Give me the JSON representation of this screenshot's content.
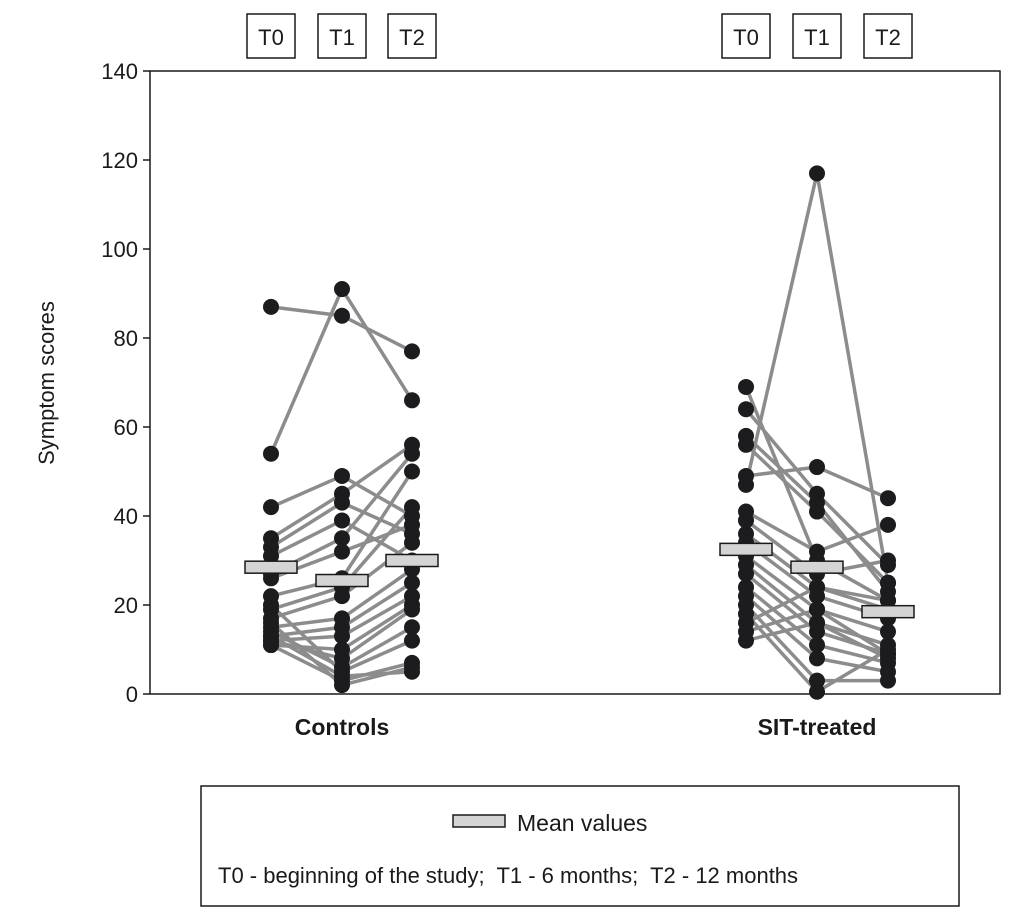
{
  "chart_data": {
    "type": "scatter",
    "subtype": "paired-dot-line",
    "ylabel": "Symptom scores",
    "ylim": [
      0,
      140
    ],
    "yticks": [
      0,
      20,
      40,
      60,
      80,
      100,
      120,
      140
    ],
    "timepoints": [
      "T0",
      "T1",
      "T2"
    ],
    "groups": [
      {
        "name": "Controls",
        "means": [
          28.5,
          25.5,
          30
        ],
        "subjects": [
          [
            87,
            85,
            77
          ],
          [
            54,
            91,
            66
          ],
          [
            42,
            49,
            40
          ],
          [
            35,
            45,
            56
          ],
          [
            33,
            43,
            36
          ],
          [
            31,
            39,
            30
          ],
          [
            27,
            35,
            54
          ],
          [
            26,
            32,
            38
          ],
          [
            22,
            26,
            50
          ],
          [
            19,
            24,
            42
          ],
          [
            17,
            22,
            34
          ],
          [
            15,
            17,
            28
          ],
          [
            13,
            15,
            25
          ],
          [
            12,
            13,
            22
          ],
          [
            11,
            10,
            20
          ],
          [
            12,
            8,
            19
          ],
          [
            14,
            6,
            15
          ],
          [
            20,
            5,
            12
          ],
          [
            11,
            3,
            7
          ],
          [
            16,
            2,
            6
          ],
          [
            13,
            4,
            5
          ]
        ]
      },
      {
        "name": "SIT-treated",
        "means": [
          32.5,
          28.5,
          18.5
        ],
        "subjects": [
          [
            69,
            30,
            21
          ],
          [
            64,
            45,
            29
          ],
          [
            58,
            43,
            23
          ],
          [
            56,
            41,
            25
          ],
          [
            47,
            117,
            25
          ],
          [
            49,
            51,
            44
          ],
          [
            41,
            32,
            38
          ],
          [
            39,
            27,
            30
          ],
          [
            36,
            24,
            19
          ],
          [
            34,
            22,
            17
          ],
          [
            31,
            19,
            14
          ],
          [
            29,
            16,
            11
          ],
          [
            27,
            14,
            9
          ],
          [
            24,
            11,
            7
          ],
          [
            22,
            8,
            5
          ],
          [
            20,
            3,
            3
          ],
          [
            18,
            0.5,
            10
          ],
          [
            16,
            24,
            21
          ],
          [
            14,
            19,
            9
          ],
          [
            12,
            16,
            8
          ]
        ]
      }
    ],
    "legend": {
      "mean_label": "Mean values",
      "note": "T0 - beginning of the study;  T1 - 6 months;  T2 - 12 months",
      "placement": "bottom"
    },
    "colors": {
      "line": "#8c8c8c",
      "dot": "#1c1c1e",
      "mean_fill": "#d4d4d4"
    }
  }
}
